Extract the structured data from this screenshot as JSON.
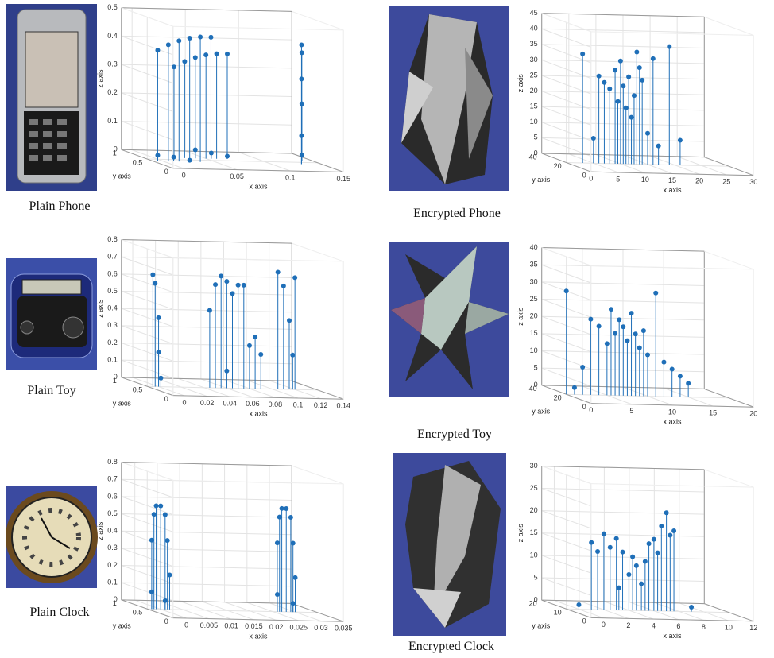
{
  "captions": [
    "Plain Phone",
    "Encrypted Phone",
    "Plain Toy",
    "Encrypted Toy",
    "Plain Clock",
    "Encrypted Clock"
  ],
  "chart_data": [
    {
      "type": "stem3",
      "color": "#1f6fb8",
      "grid": true,
      "xlabel": "x axis",
      "ylabel": "y axis",
      "zlabel": "z axis",
      "xlim": [
        -0.01,
        0.15
      ],
      "xticks": [
        0,
        0.05,
        0.1,
        0.15
      ],
      "ylim": [
        0,
        1
      ],
      "yticks": [
        0,
        0.5,
        1
      ],
      "zlim": [
        0,
        0.5
      ],
      "zticks": [
        0,
        0.1,
        0.2,
        0.3,
        0.4,
        0.5
      ],
      "x": [
        -0.005,
        0.005,
        0.015,
        0.025,
        0.035,
        0.045,
        0.02,
        0.03,
        0.04,
        0.05,
        0.06,
        0.07,
        -0.005,
        0.01,
        0.025,
        0.04,
        0.055,
        0.07,
        0.13,
        0.13,
        0.13,
        0.14,
        0.14,
        0.14
      ],
      "y": [
        0.4,
        0.4,
        0.4,
        0.4,
        0.4,
        0.4,
        0.6,
        0.6,
        0.6,
        0.6,
        0.6,
        0.6,
        0.4,
        0.4,
        0.4,
        0.6,
        0.6,
        0.6,
        0.4,
        0.4,
        0.4,
        0.6,
        0.6,
        0.6
      ],
      "z": [
        0.39,
        0.41,
        0.425,
        0.435,
        0.44,
        0.44,
        0.32,
        0.34,
        0.355,
        0.365,
        0.37,
        0.37,
        0.02,
        0.015,
        0.005,
        0.03,
        0.02,
        0.01,
        0.42,
        0.3,
        0.1,
        0.38,
        0.2,
        0.02
      ]
    },
    {
      "type": "stem3",
      "color": "#1f6fb8",
      "grid": true,
      "xlabel": "x axis",
      "ylabel": "y axis",
      "zlabel": "z axis",
      "xlim": [
        0,
        30
      ],
      "xticks": [
        0,
        5,
        10,
        15,
        20,
        25,
        30
      ],
      "ylim": [
        0,
        40
      ],
      "yticks": [
        0,
        20,
        40
      ],
      "zlim": [
        0,
        45
      ],
      "zticks": [
        0,
        5,
        10,
        15,
        20,
        25,
        30,
        35,
        40,
        45
      ],
      "x": [
        3,
        5,
        6,
        7,
        8,
        9,
        9.5,
        10,
        10.5,
        11,
        11.5,
        12,
        12.5,
        13,
        13.5,
        14,
        15,
        16,
        17,
        19,
        21
      ],
      "y": [
        20,
        20,
        20,
        20,
        20,
        20,
        20,
        20,
        20,
        20,
        20,
        20,
        20,
        20,
        20,
        20,
        20,
        20,
        20,
        20,
        20
      ],
      "z": [
        35,
        8,
        28,
        26,
        24,
        30,
        20,
        33,
        25,
        18,
        28,
        15,
        22,
        36,
        31,
        27,
        10,
        34,
        6,
        38,
        8
      ]
    },
    {
      "type": "stem3",
      "color": "#1f6fb8",
      "grid": true,
      "xlabel": "x axis",
      "ylabel": "y axis",
      "zlabel": "z axis",
      "xlim": [
        -0.01,
        0.14
      ],
      "xticks": [
        0,
        0.02,
        0.04,
        0.06,
        0.08,
        0.1,
        0.12,
        0.14
      ],
      "ylim": [
        0,
        1
      ],
      "yticks": [
        0,
        0.5,
        1
      ],
      "zlim": [
        0,
        0.8
      ],
      "zticks": [
        0,
        0.1,
        0.2,
        0.3,
        0.4,
        0.5,
        0.6,
        0.7,
        0.8
      ],
      "x": [
        -0.005,
        -0.003,
        0,
        0,
        0.002,
        0.045,
        0.05,
        0.055,
        0.06,
        0.065,
        0.07,
        0.075,
        0.08,
        0.085,
        0.09,
        0.06,
        0.105,
        0.11,
        0.115,
        0.12,
        0.118
      ],
      "y": [
        0.5,
        0.5,
        0.5,
        0.5,
        0.5,
        0.5,
        0.5,
        0.5,
        0.5,
        0.5,
        0.5,
        0.5,
        0.5,
        0.5,
        0.5,
        0.5,
        0.5,
        0.5,
        0.5,
        0.5,
        0.5
      ],
      "z": [
        0.65,
        0.6,
        0.4,
        0.2,
        0.05,
        0.45,
        0.6,
        0.65,
        0.62,
        0.55,
        0.6,
        0.6,
        0.25,
        0.3,
        0.2,
        0.1,
        0.68,
        0.6,
        0.4,
        0.65,
        0.2
      ]
    },
    {
      "type": "stem3",
      "color": "#1f6fb8",
      "grid": true,
      "xlabel": "x axis",
      "ylabel": "y axis",
      "zlabel": "z axis",
      "xlim": [
        0,
        20
      ],
      "xticks": [
        0,
        5,
        10,
        15,
        20
      ],
      "ylim": [
        0,
        40
      ],
      "yticks": [
        0,
        20,
        40
      ],
      "zlim": [
        0,
        40
      ],
      "zticks": [
        0,
        5,
        10,
        15,
        20,
        25,
        30,
        35,
        40
      ],
      "x": [
        0,
        1,
        2,
        3,
        4,
        5,
        5.5,
        6,
        6.5,
        7,
        7.5,
        8,
        8.5,
        9,
        9.5,
        10,
        11,
        12,
        13,
        14,
        15
      ],
      "y": [
        20,
        20,
        20,
        20,
        20,
        20,
        20,
        20,
        20,
        20,
        20,
        20,
        20,
        20,
        20,
        20,
        20,
        20,
        20,
        20,
        20
      ],
      "z": [
        30,
        2,
        8,
        22,
        20,
        15,
        25,
        18,
        22,
        20,
        16,
        24,
        18,
        14,
        19,
        12,
        30,
        10,
        8,
        6,
        4
      ]
    },
    {
      "type": "stem3",
      "color": "#1f6fb8",
      "grid": true,
      "xlabel": "x axis",
      "ylabel": "y axis",
      "zlabel": "z axis",
      "xlim": [
        -0.003,
        0.035
      ],
      "xticks": [
        0,
        0.005,
        0.01,
        0.015,
        0.02,
        0.025,
        0.03,
        0.035
      ],
      "ylim": [
        0,
        1
      ],
      "yticks": [
        0,
        0.5,
        1
      ],
      "zlim": [
        0,
        0.8
      ],
      "zticks": [
        0,
        0.1,
        0.2,
        0.3,
        0.4,
        0.5,
        0.6,
        0.7,
        0.8
      ],
      "x": [
        -0.002,
        -0.0015,
        -0.001,
        0,
        0.001,
        0.0015,
        0.002,
        -0.002,
        0.001,
        0.026,
        0.0265,
        0.027,
        0.028,
        0.029,
        0.0295,
        0.03,
        0.026,
        0.0295
      ],
      "y": [
        0.5,
        0.5,
        0.5,
        0.5,
        0.5,
        0.5,
        0.5,
        0.5,
        0.5,
        0.5,
        0.5,
        0.5,
        0.5,
        0.5,
        0.5,
        0.5,
        0.5,
        0.5
      ],
      "z": [
        0.4,
        0.55,
        0.6,
        0.6,
        0.55,
        0.4,
        0.2,
        0.1,
        0.05,
        0.4,
        0.55,
        0.6,
        0.6,
        0.55,
        0.4,
        0.2,
        0.1,
        0.05
      ]
    },
    {
      "type": "stem3",
      "color": "#1f6fb8",
      "grid": true,
      "xlabel": "x axis",
      "ylabel": "y axis",
      "zlabel": "z axis",
      "xlim": [
        -1,
        12
      ],
      "xticks": [
        0,
        2,
        4,
        6,
        8,
        10,
        12
      ],
      "ylim": [
        0,
        20
      ],
      "yticks": [
        0,
        10,
        20
      ],
      "zlim": [
        0,
        30
      ],
      "zticks": [
        0,
        5,
        10,
        15,
        20,
        25,
        30
      ],
      "x": [
        0,
        1,
        1.5,
        2,
        2.5,
        3,
        3.2,
        3.5,
        4,
        4.3,
        4.6,
        5,
        5.3,
        5.6,
        6,
        6.3,
        6.6,
        7,
        7.3,
        7.6,
        9
      ],
      "y": [
        10,
        10,
        10,
        10,
        10,
        10,
        10,
        10,
        10,
        10,
        10,
        10,
        10,
        10,
        10,
        10,
        10,
        10,
        10,
        10,
        10
      ],
      "z": [
        1,
        15,
        13,
        17,
        14,
        16,
        5,
        13,
        8,
        12,
        10,
        6,
        11,
        15,
        16,
        13,
        19,
        22,
        17,
        18,
        1
      ]
    }
  ]
}
